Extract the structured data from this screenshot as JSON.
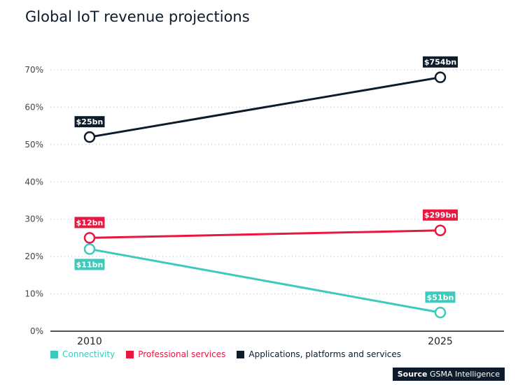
{
  "title": "Global IoT revenue projections",
  "source": {
    "prefix": "Source",
    "name": "GSMA Intelligence"
  },
  "chart_data": {
    "type": "line",
    "title": "Global IoT revenue projections",
    "x": [
      "2010",
      "2025"
    ],
    "ylim": [
      0,
      70
    ],
    "yticks": [
      0,
      10,
      20,
      30,
      40,
      50,
      60,
      70
    ],
    "y_tick_format": "%",
    "grid": "horizontal-dotted",
    "legend": "bottom-left",
    "series": [
      {
        "name": "Connectivity",
        "color": "#3ec9bd",
        "values": [
          22,
          5
        ],
        "labels": [
          "$11bn",
          "$51bn"
        ]
      },
      {
        "name": "Professional services",
        "color": "#e8173f",
        "values": [
          25,
          27
        ],
        "labels": [
          "$12bn",
          "$299bn"
        ]
      },
      {
        "name": "Applications, platforms and services",
        "color": "#0d1b2a",
        "values": [
          52,
          68
        ],
        "labels": [
          "$25bn",
          "$754bn"
        ]
      }
    ]
  }
}
